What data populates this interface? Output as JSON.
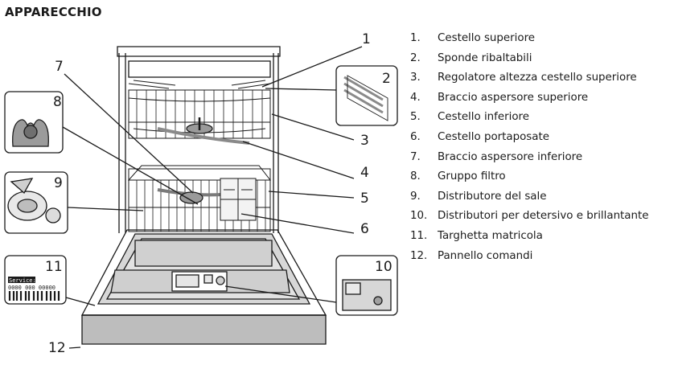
{
  "title": "APPARECCHIO",
  "legend": [
    {
      "num": "1.",
      "label": "Cestello superiore"
    },
    {
      "num": "2.",
      "label": "Sponde ribaltabili"
    },
    {
      "num": "3.",
      "label": "Regolatore altezza cestello superiore"
    },
    {
      "num": "4.",
      "label": "Braccio aspersore superiore"
    },
    {
      "num": "5.",
      "label": "Cestello inferiore"
    },
    {
      "num": "6.",
      "label": "Cestello portaposate"
    },
    {
      "num": "7.",
      "label": "Braccio aspersore inferiore"
    },
    {
      "num": "8.",
      "label": "Gruppo filtro"
    },
    {
      "num": "9.",
      "label": "Distributore del sale"
    },
    {
      "num": "10.",
      "label": "Distributori per detersivo e brillantante"
    },
    {
      "num": "11.",
      "label": "Targhetta matricola"
    },
    {
      "num": "12.",
      "label": "Pannello comandi"
    }
  ],
  "callouts": [
    "1",
    "2",
    "3",
    "4",
    "5",
    "6",
    "7",
    "8",
    "9",
    "10",
    "11",
    "12"
  ],
  "serial_plate": {
    "service_label": "Service:",
    "serial_number": "0000 000 00000"
  }
}
